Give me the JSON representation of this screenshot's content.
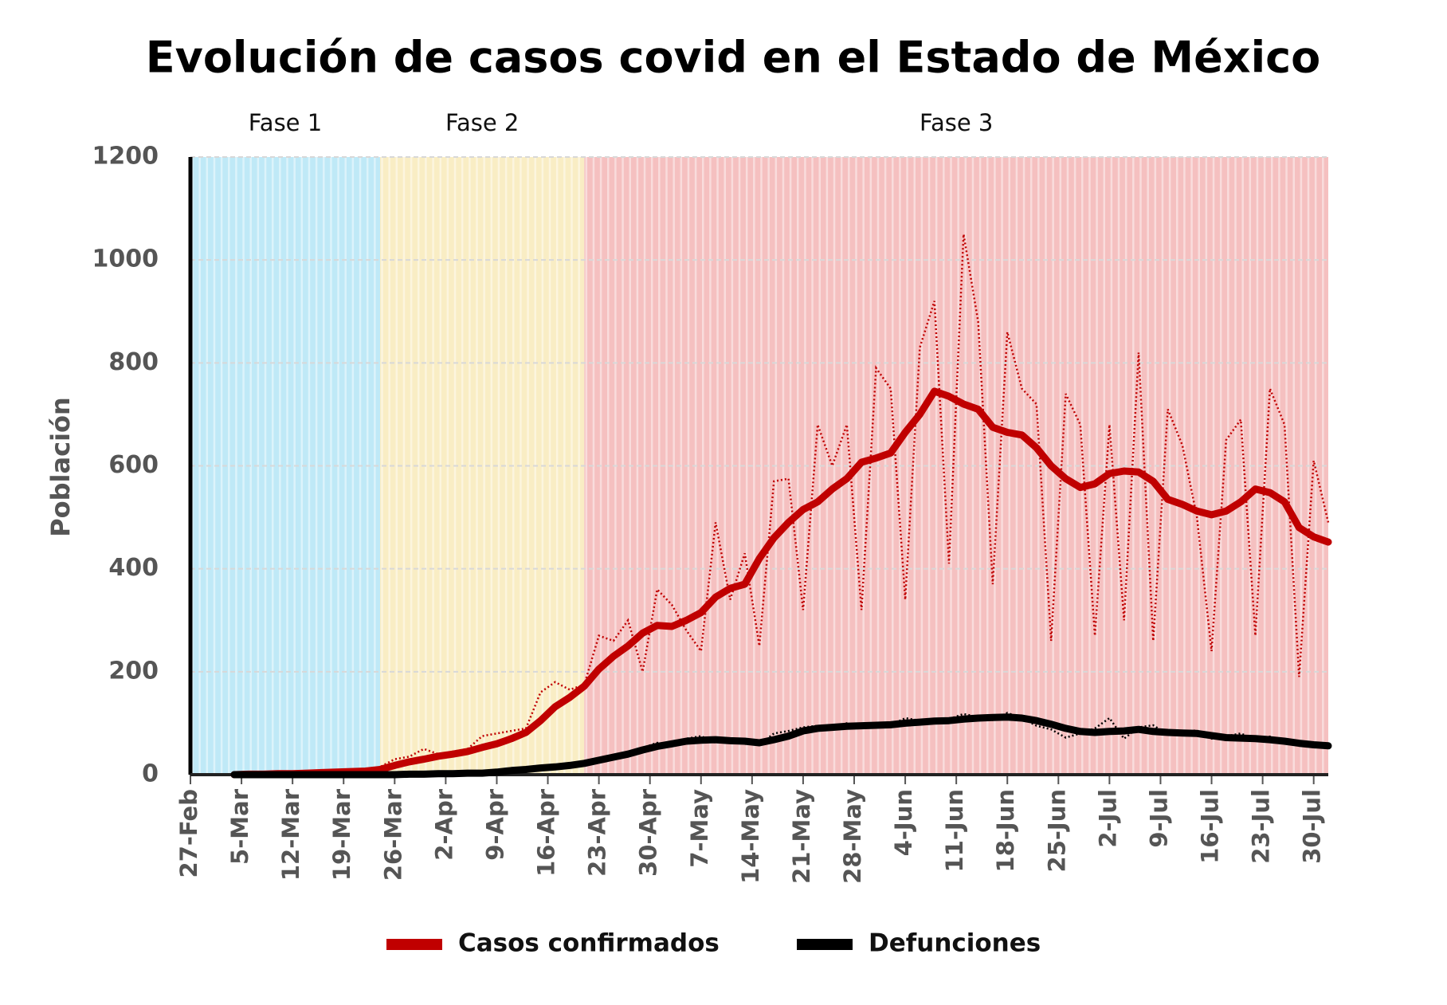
{
  "chart_data": {
    "type": "line",
    "title": "Evolución de casos covid en el Estado de México",
    "y_label": "Población",
    "phases": [
      {
        "label": "Fase 1",
        "start": 0,
        "end": 26,
        "color": "#bfe9f7"
      },
      {
        "label": "Fase 2",
        "start": 26,
        "end": 54,
        "color": "#f9edc4"
      },
      {
        "label": "Fase 3",
        "start": 54,
        "end": 156,
        "color": "#f5c0c0"
      }
    ],
    "xlim": [
      0,
      156
    ],
    "xticks": [
      {
        "value": 0,
        "label": "27-Feb"
      },
      {
        "value": 7,
        "label": "5-Mar"
      },
      {
        "value": 14,
        "label": "12-Mar"
      },
      {
        "value": 21,
        "label": "19-Mar"
      },
      {
        "value": 28,
        "label": "26-Mar"
      },
      {
        "value": 35,
        "label": "2-Apr"
      },
      {
        "value": 42,
        "label": "9-Apr"
      },
      {
        "value": 49,
        "label": "16-Apr"
      },
      {
        "value": 56,
        "label": "23-Apr"
      },
      {
        "value": 63,
        "label": "30-Apr"
      },
      {
        "value": 70,
        "label": "7-May"
      },
      {
        "value": 77,
        "label": "14-May"
      },
      {
        "value": 84,
        "label": "21-May"
      },
      {
        "value": 91,
        "label": "28-May"
      },
      {
        "value": 98,
        "label": "4-Jun"
      },
      {
        "value": 105,
        "label": "11-Jun"
      },
      {
        "value": 112,
        "label": "18-Jun"
      },
      {
        "value": 119,
        "label": "25-Jun"
      },
      {
        "value": 126,
        "label": "2-Jul"
      },
      {
        "value": 133,
        "label": "9-Jul"
      },
      {
        "value": 140,
        "label": "16-Jul"
      },
      {
        "value": 147,
        "label": "23-Jul"
      },
      {
        "value": 154,
        "label": "30-Jul"
      }
    ],
    "ylim": [
      0,
      1200
    ],
    "yticks": [
      0,
      200,
      400,
      600,
      800,
      1000,
      1200
    ],
    "grid": true,
    "legend": "bottom",
    "x": [
      6,
      8,
      10,
      12,
      14,
      16,
      18,
      20,
      22,
      24,
      26,
      28,
      30,
      32,
      34,
      36,
      38,
      40,
      42,
      44,
      46,
      48,
      50,
      52,
      54,
      56,
      58,
      60,
      62,
      64,
      66,
      68,
      70,
      72,
      74,
      76,
      78,
      80,
      82,
      84,
      86,
      88,
      90,
      92,
      94,
      96,
      98,
      100,
      102,
      104,
      106,
      108,
      110,
      112,
      114,
      116,
      118,
      120,
      122,
      124,
      126,
      128,
      130,
      132,
      134,
      136,
      138,
      140,
      142,
      144,
      146,
      148,
      150,
      152,
      154,
      156
    ],
    "series": [
      {
        "name": "Casos confirmados",
        "color": "#c00000",
        "values": [
          0,
          1,
          1,
          2,
          2,
          3,
          4,
          5,
          6,
          7,
          10,
          18,
          25,
          30,
          36,
          40,
          45,
          53,
          60,
          70,
          82,
          105,
          132,
          150,
          172,
          205,
          230,
          250,
          275,
          290,
          288,
          300,
          315,
          345,
          362,
          370,
          420,
          460,
          490,
          515,
          530,
          555,
          575,
          607,
          615,
          625,
          665,
          700,
          745,
          735,
          720,
          710,
          675,
          665,
          660,
          635,
          600,
          575,
          558,
          565,
          585,
          590,
          588,
          570,
          535,
          525,
          512,
          505,
          512,
          530,
          555,
          548,
          530,
          480,
          462,
          452
        ],
        "daily": [
          0,
          1,
          2,
          2,
          3,
          4,
          5,
          6,
          8,
          10,
          15,
          30,
          35,
          50,
          40,
          45,
          50,
          75,
          80,
          85,
          90,
          160,
          180,
          165,
          175,
          270,
          260,
          300,
          200,
          360,
          330,
          280,
          240,
          490,
          340,
          430,
          250,
          570,
          575,
          320,
          680,
          600,
          680,
          320,
          790,
          750,
          340,
          830,
          920,
          410,
          1050,
          880,
          370,
          860,
          750,
          720,
          260,
          740,
          680,
          270,
          680,
          300,
          820,
          260,
          710,
          640,
          500,
          240,
          650,
          690,
          270,
          750,
          680,
          190,
          610,
          490
        ]
      },
      {
        "name": "Defunciones",
        "color": "#000000",
        "values": [
          0,
          0,
          0,
          0,
          0,
          0,
          0,
          0,
          0,
          0,
          0,
          0,
          1,
          1,
          2,
          2,
          3,
          3,
          5,
          8,
          10,
          13,
          15,
          18,
          22,
          28,
          34,
          40,
          48,
          55,
          60,
          65,
          67,
          68,
          66,
          65,
          62,
          68,
          75,
          85,
          90,
          92,
          94,
          95,
          96,
          97,
          100,
          102,
          104,
          105,
          108,
          110,
          111,
          112,
          110,
          105,
          98,
          90,
          84,
          82,
          84,
          85,
          88,
          84,
          82,
          81,
          80,
          76,
          72,
          71,
          70,
          68,
          65,
          61,
          58,
          56
        ],
        "daily": [
          0,
          0,
          0,
          0,
          0,
          0,
          0,
          0,
          0,
          1,
          0,
          1,
          2,
          1,
          3,
          2,
          4,
          3,
          7,
          10,
          9,
          15,
          14,
          20,
          24,
          30,
          36,
          45,
          52,
          62,
          58,
          70,
          75,
          62,
          68,
          60,
          58,
          80,
          85,
          92,
          95,
          88,
          100,
          92,
          98,
          96,
          110,
          105,
          100,
          108,
          118,
          112,
          106,
          120,
          110,
          95,
          88,
          72,
          80,
          90,
          110,
          70,
          92,
          96,
          78,
          84,
          86,
          70,
          75,
          80,
          68,
          74,
          60,
          58,
          62,
          54
        ]
      }
    ]
  }
}
